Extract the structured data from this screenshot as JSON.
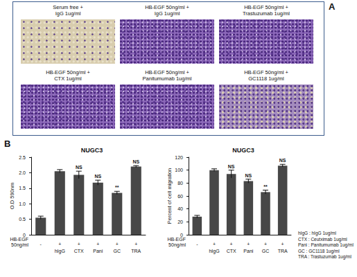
{
  "panels": {
    "A": {
      "label": "A",
      "tiles": [
        {
          "label": [
            "Serum free +",
            "IgG 1ug/ml"
          ]
        },
        {
          "label": [
            "HB-EGF 50ng/ml +",
            "IgG 1ug/ml"
          ]
        },
        {
          "label": [
            "HB-EGF 50ng/ml +",
            "Trastuzumab 1ug/ml"
          ]
        },
        {
          "label": [
            "HB-EGF 50ng/ml +",
            "CTX 1ug/ml"
          ]
        },
        {
          "label": [
            "HB-EGF 50ng/ml +",
            "Panitumumab 1ug/ml"
          ]
        },
        {
          "label": [
            "HB-EGF 50ng/ml +",
            "GC1118 1ug/ml"
          ]
        }
      ]
    },
    "B": {
      "label": "B",
      "key": [
        "hIgG : hIgG 1ug/ml",
        "CTX : Ceutximab 1ug/ml",
        "Pani : Panitumumab 1ug/ml",
        "GC : GC1118 1ug/ml",
        "TRA : Trastuzumab 1ug/ml"
      ]
    }
  },
  "chart_data": [
    {
      "type": "bar",
      "title": "NUGC3",
      "y_label": "O.D 590nm",
      "categories": [
        null,
        "hIgG",
        "CTX",
        "Pani",
        "GC",
        "TRA"
      ],
      "row_label": "HB-EGF 50ng/ml",
      "row": [
        "-",
        "+",
        "+",
        "+",
        "+",
        "+"
      ],
      "values": [
        0.55,
        2.05,
        1.93,
        1.68,
        1.35,
        2.2
      ],
      "errors": [
        0.05,
        0.05,
        0.12,
        0.08,
        0.05,
        0.03
      ],
      "significance": [
        null,
        null,
        "NS",
        "NS",
        "**",
        "NS"
      ],
      "color": "#474747",
      "ylim": [
        0,
        2.5
      ],
      "yticks": [
        0,
        0.5,
        {
          "value": 1,
          "label": "1.0"
        },
        1.5,
        {
          "value": 2,
          "label": "2.0"
        },
        2.5
      ],
      "grid": false
    },
    {
      "type": "bar",
      "title": "NUGC3",
      "y_label": "Percent of cell migration",
      "categories": [
        null,
        "hIgG",
        "CTX",
        "Pani",
        "GC",
        "TRA"
      ],
      "row_label": "HB-EGF 50ng/ml",
      "row": [
        "-",
        "+",
        "+",
        "+",
        "+",
        "+"
      ],
      "values": [
        28,
        100,
        94,
        83,
        66,
        107
      ],
      "errors": [
        2,
        2,
        6,
        3,
        3,
        2
      ],
      "significance": [
        null,
        null,
        "NS",
        "NS",
        "**",
        "NS"
      ],
      "color": "#474747",
      "ylim": [
        0,
        120
      ],
      "yticks": [
        0,
        20,
        40,
        60,
        80,
        100,
        120
      ],
      "grid": false
    }
  ]
}
